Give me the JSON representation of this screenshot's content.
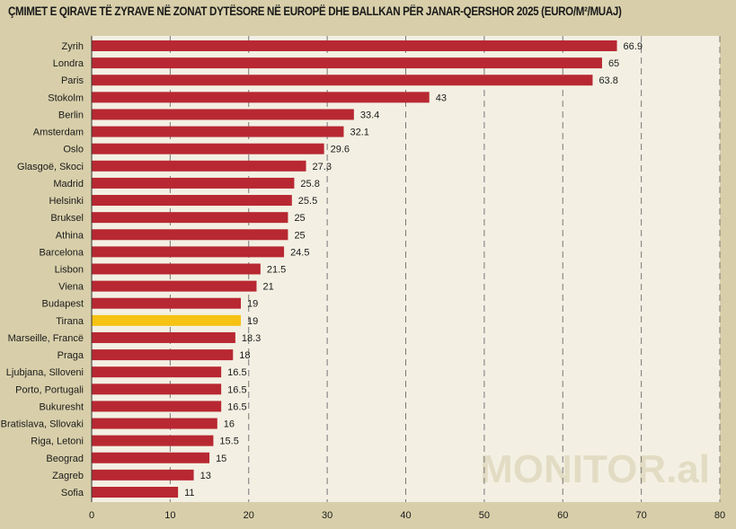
{
  "chart_data": {
    "type": "bar",
    "orientation": "horizontal",
    "title": "ÇMIMET E QIRAVE TË ZYRAVE NË ZONAT DYTËSORE NË EUROPË DHE BALLKAN PËR JANAR-QERSHOR 2025 (EURO/M²/MUAJ)",
    "categories": [
      "Zyrih",
      "Londra",
      "Paris",
      "Stokolm",
      "Berlin",
      "Amsterdam",
      "Oslo",
      "Glasgoë, Skoci",
      "Madrid",
      "Helsinki",
      "Bruksel",
      "Athina",
      "Barcelona",
      "Lisbon",
      "Viena",
      "Budapest",
      "Tirana",
      "Marseille, Francë",
      "Praga",
      "Ljubjana, Slloveni",
      "Porto, Portugali",
      "Bukuresht",
      "Bratislava, Sllovaki",
      "Riga, Letoni",
      "Beograd",
      "Zagreb",
      "Sofia"
    ],
    "values": [
      66.9,
      65,
      63.8,
      43,
      33.4,
      32.1,
      29.6,
      27.3,
      25.8,
      25.5,
      25,
      25,
      24.5,
      21.5,
      21,
      19,
      19,
      18.3,
      18,
      16.5,
      16.5,
      16.5,
      16,
      15.5,
      15,
      13,
      11
    ],
    "value_labels": [
      "66.9",
      "65",
      "63.8",
      "43",
      "33.4",
      "32.1",
      "29.6",
      "27.3",
      "25.8",
      "25.5",
      "25",
      "25",
      "24.5",
      "21.5",
      "21",
      "19",
      "19",
      "18.3",
      "18",
      "16.5",
      "16.5",
      "16.5",
      "16",
      "15.5",
      "15",
      "13",
      "11"
    ],
    "highlight": "Tirana",
    "xlim": [
      0,
      80
    ],
    "xticks": [
      0,
      10,
      20,
      30,
      40,
      50,
      60,
      70,
      80
    ],
    "xlabel": "",
    "ylabel": "",
    "grid": "vertical dashed",
    "colors": {
      "bar": "#b82832",
      "highlight": "#f6c214",
      "background": "#d8cfaa",
      "plot": "#f3f0e3"
    },
    "watermark": "MONITOR.al"
  }
}
